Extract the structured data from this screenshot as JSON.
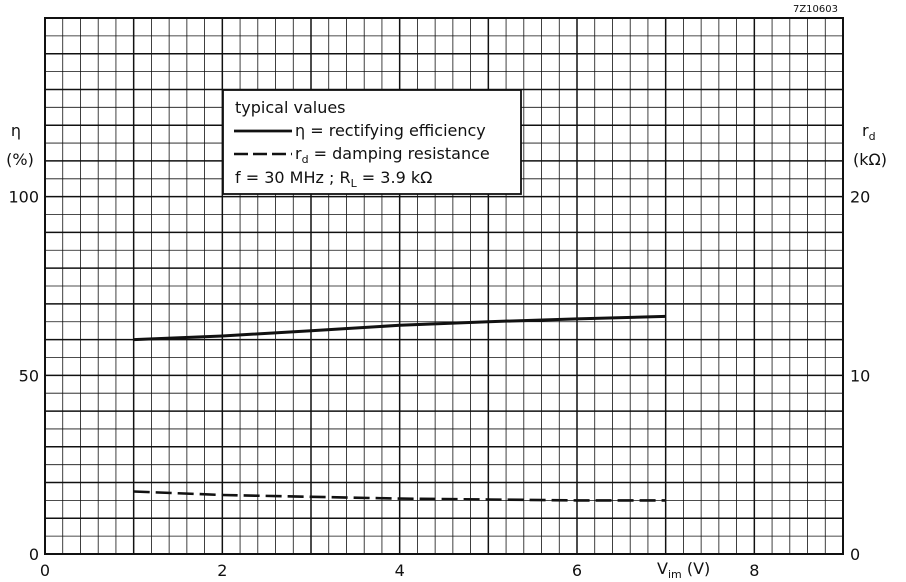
{
  "chart_data": {
    "type": "line",
    "figure_code": "7Z10603",
    "x": {
      "label": "V",
      "label_sub": "im",
      "label_unit": " (V)",
      "range": [
        0,
        9
      ],
      "ticks": [
        "0",
        "2",
        "4",
        "6",
        "8"
      ]
    },
    "y_left": {
      "label": "η",
      "unit": "(%)",
      "range": [
        0,
        150
      ],
      "ticks": [
        "0",
        "50",
        "100"
      ]
    },
    "y_right": {
      "label": "r",
      "label_sub": "d",
      "unit": "(kΩ)",
      "range": [
        0,
        30
      ],
      "ticks": [
        "0",
        "10",
        "20"
      ]
    },
    "grid": true,
    "legend": {
      "placement": "top-center",
      "title": "typical values",
      "entries": [
        {
          "symbol": "η",
          "text": " = rectifying efficiency",
          "style": "solid"
        },
        {
          "symbol": "r",
          "symbol_sub": "d",
          "text": " = damping resistance",
          "style": "dashed"
        }
      ],
      "cond_prefix": "f = 30 MHz ;  R",
      "cond_sub": "L",
      "cond_suffix": " = 3.9 kΩ"
    },
    "series": [
      {
        "axis": "left",
        "style": "solid",
        "x": [
          1,
          2,
          3,
          4,
          5,
          6,
          7
        ],
        "y": [
          60,
          61,
          62.5,
          64,
          65,
          65.8,
          66.5
        ]
      },
      {
        "axis": "right",
        "style": "dashed",
        "x": [
          1,
          2,
          3,
          4,
          5,
          6,
          7
        ],
        "y": [
          3.5,
          3.3,
          3.2,
          3.1,
          3.05,
          3.0,
          3.0
        ]
      }
    ]
  }
}
